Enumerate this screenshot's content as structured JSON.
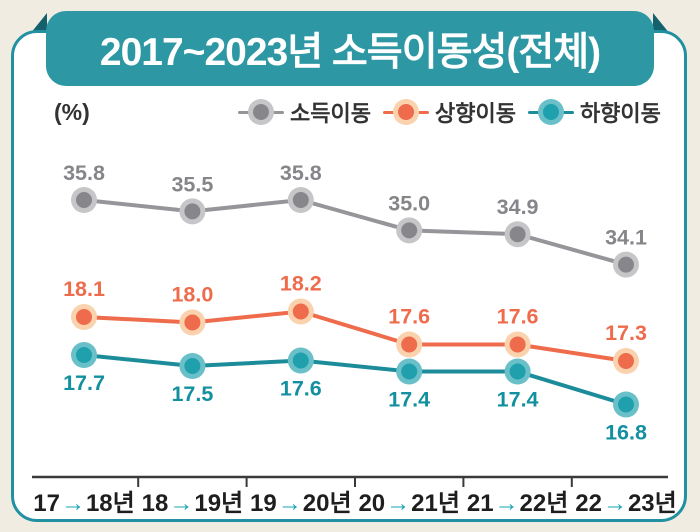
{
  "banner": {
    "title": "2017~2023년 소득이동성(전체)"
  },
  "unit_label": "(%)",
  "chart_data": {
    "type": "line",
    "title": "2017~2023년 소득이동성(전체)",
    "unit": "%",
    "categories": [
      "17→18년",
      "18→19년",
      "19→20년",
      "20→21년",
      "21→22년",
      "22→23년"
    ],
    "category_parts": [
      {
        "from": "17",
        "to": "18년"
      },
      {
        "from": "18",
        "to": "19년"
      },
      {
        "from": "19",
        "to": "20년"
      },
      {
        "from": "20",
        "to": "21년"
      },
      {
        "from": "21",
        "to": "22년"
      },
      {
        "from": "22",
        "to": "23년"
      }
    ],
    "series": [
      {
        "name": "소득이동",
        "values": [
          35.8,
          35.5,
          35.8,
          35.0,
          34.9,
          34.1
        ],
        "line_color": "#96969a",
        "dot_color": "#87878b",
        "halo_color": "#c6c6c9",
        "label_color": "#85858a",
        "label_position": "above"
      },
      {
        "name": "상향이동",
        "values": [
          18.1,
          18.0,
          18.2,
          17.6,
          17.6,
          17.3
        ],
        "line_color": "#ee6b4c",
        "dot_color": "#ee6b4c",
        "halo_color": "#fad2ae",
        "label_color": "#ee6b4c",
        "label_position": "above"
      },
      {
        "name": "하향이동",
        "values": [
          17.7,
          17.5,
          17.6,
          17.4,
          17.4,
          16.8
        ],
        "line_color": "#1c8c9a",
        "dot_color": "#20a0ad",
        "halo_color": "#69c0c9",
        "label_color": "#13909f",
        "label_position": "below"
      }
    ],
    "legend_position": "top-right",
    "grid": false,
    "value_labels": true,
    "colors": {
      "background": "#f1ece2",
      "banner": "#2d98a4",
      "banner_fold": "#14616d",
      "card_border": "#2191a1",
      "axis_line": "#3a3a3a",
      "axis_text": "#1e1e1e",
      "axis_arrow": "#17a3b4",
      "legend_text": "#333333"
    }
  }
}
